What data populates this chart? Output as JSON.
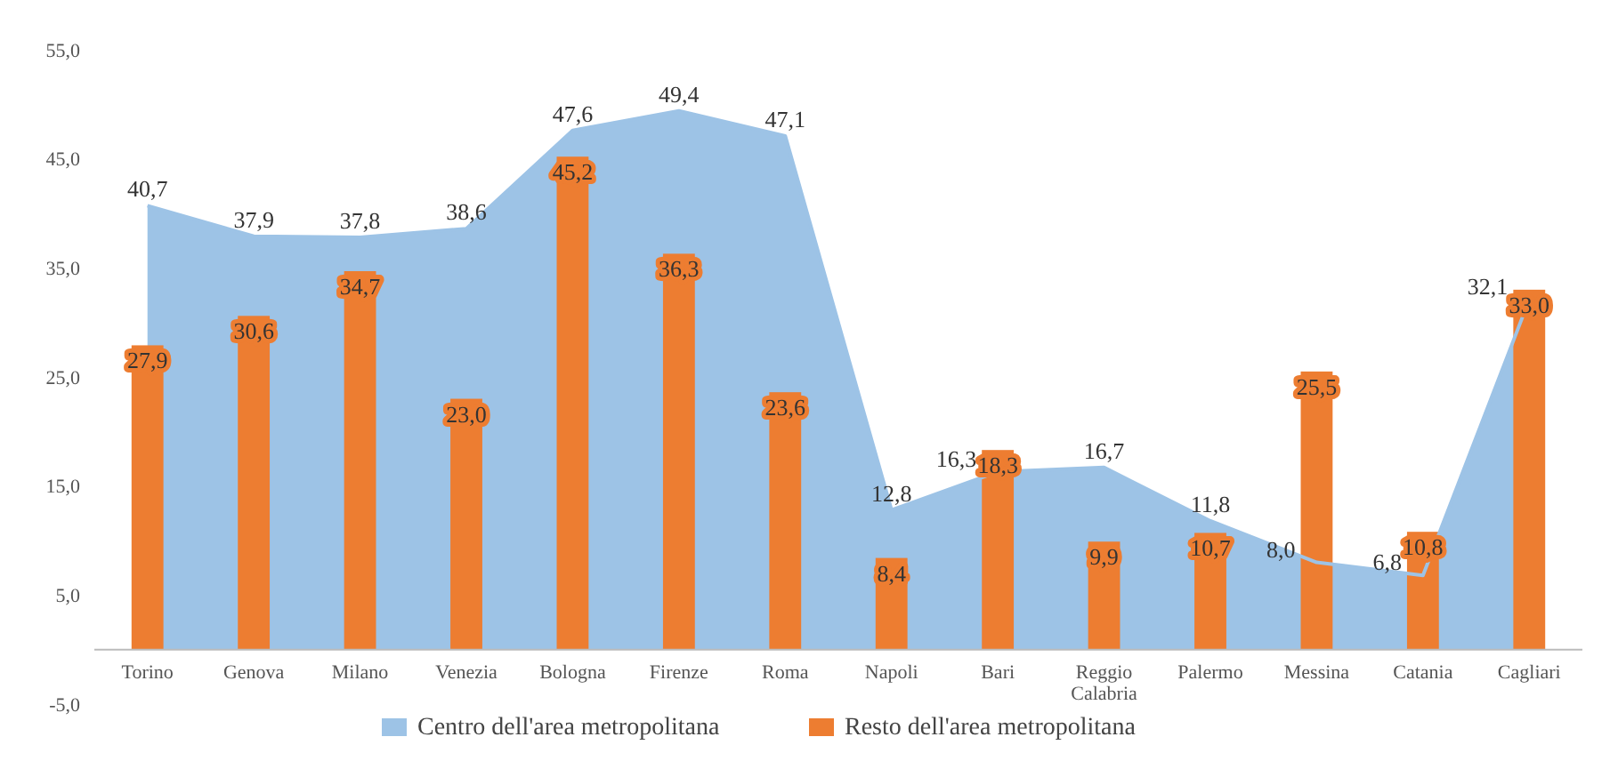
{
  "chart_data": {
    "type": "bar",
    "categories": [
      "Torino",
      "Genova",
      "Milano",
      "Venezia",
      "Bologna",
      "Firenze",
      "Roma",
      "Napoli",
      "Bari",
      "Reggio Calabria",
      "Palermo",
      "Messina",
      "Catania",
      "Cagliari"
    ],
    "series": [
      {
        "name": "Centro dell'area metropolitana",
        "type": "area",
        "color": "#9dc3e6",
        "values": [
          40.7,
          37.9,
          37.8,
          38.6,
          47.6,
          49.4,
          47.1,
          12.8,
          16.3,
          16.7,
          11.8,
          8.0,
          6.8,
          32.1
        ],
        "value_labels": [
          "40,7",
          "37,9",
          "37,8",
          "38,6",
          "47,6",
          "49,4",
          "47,1",
          "12,8",
          "16,3",
          "16,7",
          "11,8",
          "8,0",
          "6,8",
          "32,1"
        ]
      },
      {
        "name": "Resto dell'area metropolitana",
        "color": "#ed7d31",
        "values": [
          27.9,
          30.6,
          34.7,
          23.0,
          45.2,
          36.3,
          23.6,
          8.4,
          18.3,
          9.9,
          10.7,
          25.5,
          10.8,
          33.0
        ],
        "value_labels": [
          "27,9",
          "30,6",
          "34,7",
          "23,0",
          "45,2",
          "36,3",
          "23,6",
          "8,4",
          "18,3",
          "9,9",
          "10,7",
          "25,5",
          "10,8",
          "33,0"
        ]
      }
    ],
    "ylim": [
      -5,
      55
    ],
    "yticks": [
      {
        "value": -5,
        "label": "-5,0"
      },
      {
        "value": 5,
        "label": "5,0"
      },
      {
        "value": 15,
        "label": "15,0"
      },
      {
        "value": 25,
        "label": "25,0"
      },
      {
        "value": 35,
        "label": "35,0"
      },
      {
        "value": 45,
        "label": "45,0"
      },
      {
        "value": 55,
        "label": "55,0"
      }
    ],
    "grid": false,
    "legend": "bottom"
  }
}
